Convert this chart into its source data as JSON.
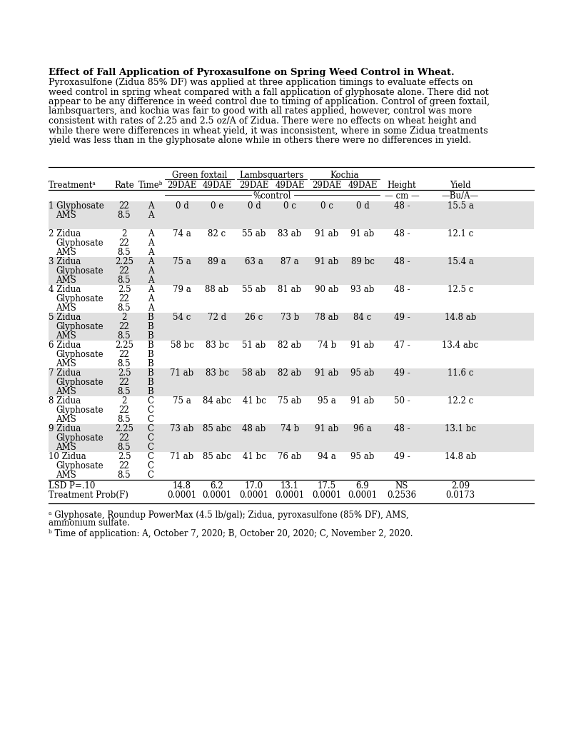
{
  "title": "Effect of Fall Application of Pyroxasulfone on Spring Weed Control in Wheat.",
  "desc_lines": [
    "Pyroxasulfone (Zidua 85% DF) was applied at three application timings to evaluate effects on",
    "weed control in spring wheat compared with a fall application of glyphosate alone. There did not",
    "appear to be any difference in weed control due to timing of application. Control of green foxtail,",
    "lambsquarters, and kochia was fair to good with all rates applied, however, control was more",
    "consistent with rates of 2.25 and 2.5 oz/A of Zidua. There were no effects on wheat height and",
    "while there were differences in wheat yield, it was inconsistent, where in some Zidua treatments",
    "yield was less than in the glyphosate alone while in others there were no differences in yield."
  ],
  "footnote_a_lines": [
    "ᵃ Glyphosate, Roundup PowerMax (4.5 lb/gal); Zidua, pyroxasulfone (85% DF), AMS,",
    "ammonium sulfate."
  ],
  "footnote_b": "ᵇ Time of application: A, October 7, 2020; B, October 20, 2020; C, November 2, 2020.",
  "rows": [
    {
      "num": "1",
      "name": "Glyphosate",
      "sub1": "AMS",
      "rate": "22",
      "rate2": "8.5",
      "time": "A",
      "time2": "A",
      "gf29": "0 d",
      "gf49": "0 e",
      "lq29": "0 d",
      "lq49": "0 c",
      "ko29": "0 c",
      "ko49": "0 d",
      "ht": "48 -",
      "yld": "15.5 a",
      "shaded": true,
      "has_sub2": false
    },
    {
      "num": "2",
      "name": "Zidua",
      "sub1": "Glyphosate",
      "sub2": "AMS",
      "rate": "2",
      "rate2": "22",
      "rate3": "8.5",
      "time": "A",
      "time2": "A",
      "time3": "A",
      "gf29": "74 a",
      "gf49": "82 c",
      "lq29": "55 ab",
      "lq49": "83 ab",
      "ko29": "91 ab",
      "ko49": "91 ab",
      "ht": "48 -",
      "yld": "12.1 c",
      "shaded": false,
      "has_sub2": true
    },
    {
      "num": "3",
      "name": "Zidua",
      "sub1": "Glyphosate",
      "sub2": "AMS",
      "rate": "2.25",
      "rate2": "22",
      "rate3": "8.5",
      "time": "A",
      "time2": "A",
      "time3": "A",
      "gf29": "75 a",
      "gf49": "89 a",
      "lq29": "63 a",
      "lq49": "87 a",
      "ko29": "91 ab",
      "ko49": "89 bc",
      "ht": "48 -",
      "yld": "15.4 a",
      "shaded": true,
      "has_sub2": true
    },
    {
      "num": "4",
      "name": "Zidua",
      "sub1": "Glyphosate",
      "sub2": "AMS",
      "rate": "2.5",
      "rate2": "22",
      "rate3": "8.5",
      "time": "A",
      "time2": "A",
      "time3": "A",
      "gf29": "79 a",
      "gf49": "88 ab",
      "lq29": "55 ab",
      "lq49": "81 ab",
      "ko29": "90 ab",
      "ko49": "93 ab",
      "ht": "48 -",
      "yld": "12.5 c",
      "shaded": false,
      "has_sub2": true
    },
    {
      "num": "5",
      "name": "Zidua",
      "sub1": "Glyphosate",
      "sub2": "AMS",
      "rate": "2",
      "rate2": "22",
      "rate3": "8.5",
      "time": "B",
      "time2": "B",
      "time3": "B",
      "gf29": "54 c",
      "gf49": "72 d",
      "lq29": "26 c",
      "lq49": "73 b",
      "ko29": "78 ab",
      "ko49": "84 c",
      "ht": "49 -",
      "yld": "14.8 ab",
      "shaded": true,
      "has_sub2": true
    },
    {
      "num": "6",
      "name": "Zidua",
      "sub1": "Glyphosate",
      "sub2": "AMS",
      "rate": "2.25",
      "rate2": "22",
      "rate3": "8.5",
      "time": "B",
      "time2": "B",
      "time3": "B",
      "gf29": "58 bc",
      "gf49": "83 bc",
      "lq29": "51 ab",
      "lq49": "82 ab",
      "ko29": "74 b",
      "ko49": "91 ab",
      "ht": "47 -",
      "yld": "13.4 abc",
      "shaded": false,
      "has_sub2": true
    },
    {
      "num": "7",
      "name": "Zidua",
      "sub1": "Glyphosate",
      "sub2": "AMS",
      "rate": "2.5",
      "rate2": "22",
      "rate3": "8.5",
      "time": "B",
      "time2": "B",
      "time3": "B",
      "gf29": "71 ab",
      "gf49": "83 bc",
      "lq29": "58 ab",
      "lq49": "82 ab",
      "ko29": "91 ab",
      "ko49": "95 ab",
      "ht": "49 -",
      "yld": "11.6 c",
      "shaded": true,
      "has_sub2": true
    },
    {
      "num": "8",
      "name": "Zidua",
      "sub1": "Glyphosate",
      "sub2": "AMS",
      "rate": "2",
      "rate2": "22",
      "rate3": "8.5",
      "time": "C",
      "time2": "C",
      "time3": "C",
      "gf29": "75 a",
      "gf49": "84 abc",
      "lq29": "41 bc",
      "lq49": "75 ab",
      "ko29": "95 a",
      "ko49": "91 ab",
      "ht": "50 -",
      "yld": "12.2 c",
      "shaded": false,
      "has_sub2": true
    },
    {
      "num": "9",
      "name": "Zidua",
      "sub1": "Glyphosate",
      "sub2": "AMS",
      "rate": "2.25",
      "rate2": "22",
      "rate3": "8.5",
      "time": "C",
      "time2": "C",
      "time3": "C",
      "gf29": "73 ab",
      "gf49": "85 abc",
      "lq29": "48 ab",
      "lq49": "74 b",
      "ko29": "91 ab",
      "ko49": "96 a",
      "ht": "48 -",
      "yld": "13.1 bc",
      "shaded": true,
      "has_sub2": true
    },
    {
      "num": "10",
      "name": "Zidua",
      "sub1": "Glyphosate",
      "sub2": "AMS",
      "rate": "2.5",
      "rate2": "22",
      "rate3": "8.5",
      "time": "C",
      "time2": "C",
      "time3": "C",
      "gf29": "71 ab",
      "gf49": "85 abc",
      "lq29": "41 bc",
      "lq49": "76 ab",
      "ko29": "94 a",
      "ko49": "95 ab",
      "ht": "49 -",
      "yld": "14.8 ab",
      "shaded": false,
      "has_sub2": true
    }
  ],
  "lsd_row": {
    "label": "LSD P=.10",
    "gf29": "14.8",
    "gf49": "6.2",
    "lq29": "17.0",
    "lq49": "13.1",
    "ko29": "17.5",
    "ko49": "6.9",
    "ht": "NS",
    "yld": "2.09"
  },
  "prob_row": {
    "label": "Treatment Prob(F)",
    "gf29": "0.0001",
    "gf49": "0.0001",
    "lq29": "0.0001",
    "lq49": "0.0001",
    "ko29": "0.0001",
    "ko49": "0.0001",
    "ht": "0.2536",
    "yld": "0.0173"
  },
  "shaded_color": "#e0e0e0",
  "bg_color": "#ffffff"
}
